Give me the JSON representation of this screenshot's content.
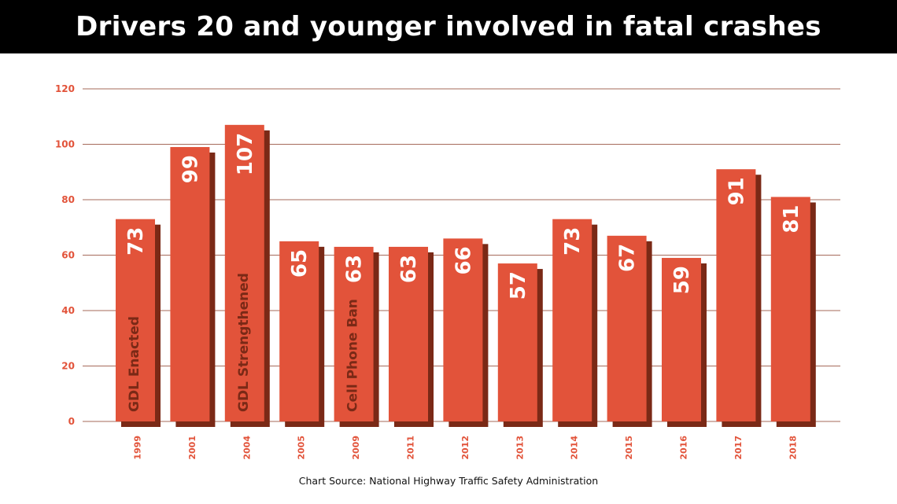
{
  "title": "Drivers 20 and younger involved in fatal crashes",
  "source": "Chart Source: National Highway Traffic Safety Administration",
  "colors": {
    "bar": "#e2533a",
    "shadow": "#7a2916",
    "axis_text": "#e2533a",
    "gridline": "#a66a5a",
    "title_bg": "#000000"
  },
  "chart_data": {
    "type": "bar",
    "title": "Drivers 20 and younger involved in fatal crashes",
    "xlabel": "",
    "ylabel": "",
    "ylim": [
      0,
      120
    ],
    "yticks": [
      0,
      20,
      40,
      60,
      80,
      100,
      120
    ],
    "grid": true,
    "categories": [
      "1999",
      "2001",
      "2004",
      "2005",
      "2009",
      "2011",
      "2012",
      "2013",
      "2014",
      "2015",
      "2016",
      "2017",
      "2018"
    ],
    "values": [
      73,
      99,
      107,
      65,
      63,
      63,
      66,
      57,
      73,
      67,
      59,
      91,
      81
    ],
    "annotations": [
      {
        "category": "1999",
        "text": "GDL Enacted"
      },
      {
        "category": "2004",
        "text": "GDL Strengthened"
      },
      {
        "category": "2009",
        "text": "Cell Phone Ban"
      }
    ]
  }
}
